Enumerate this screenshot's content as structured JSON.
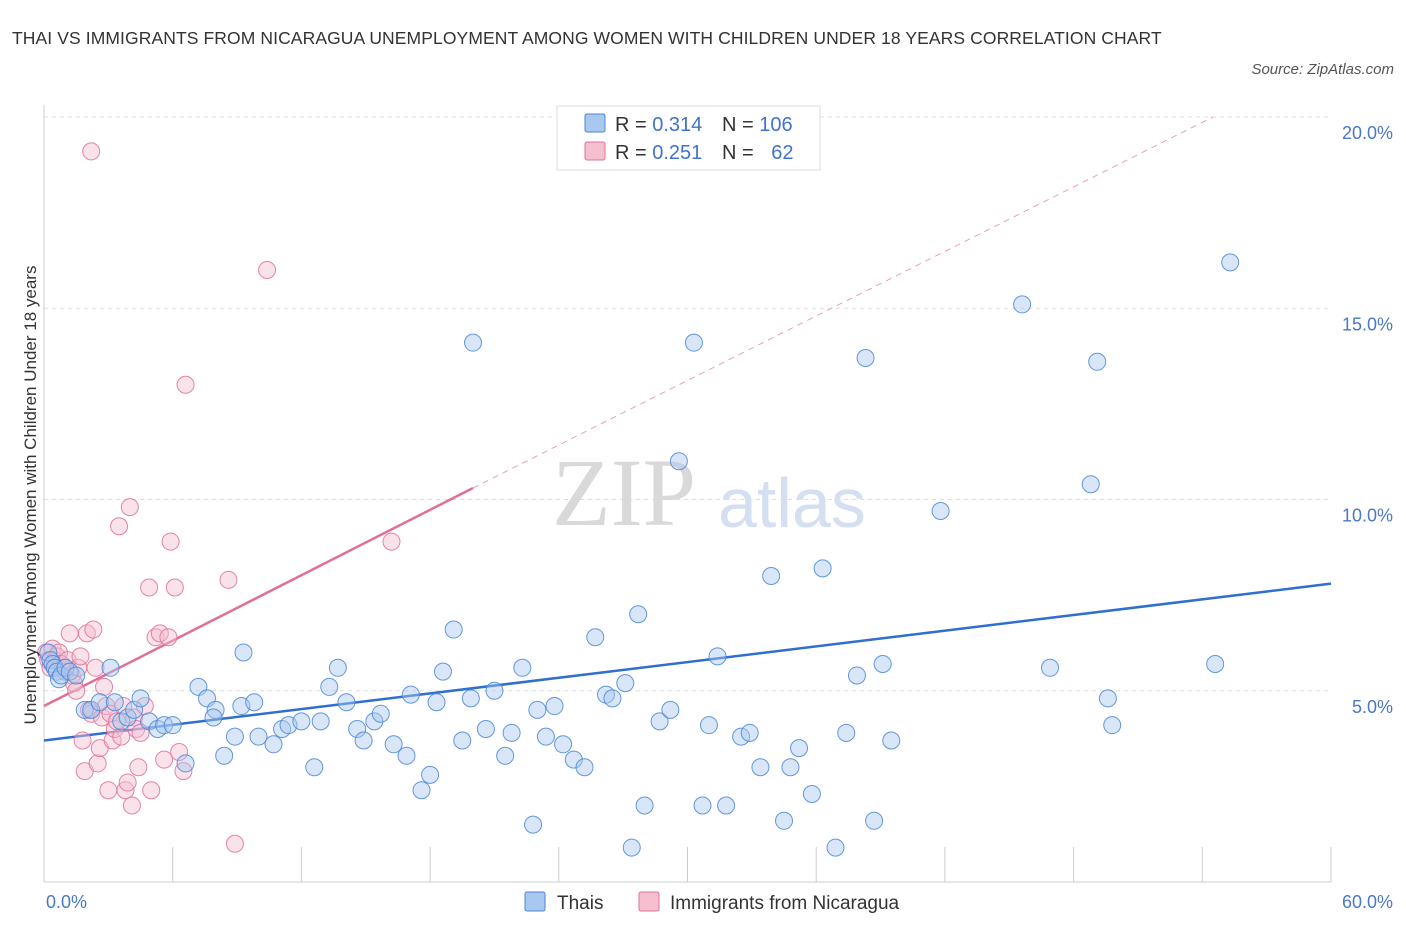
{
  "title": "THAI VS IMMIGRANTS FROM NICARAGUA UNEMPLOYMENT AMONG WOMEN WITH CHILDREN UNDER 18 YEARS CORRELATION CHART",
  "source": "Source: ZipAtlas.com",
  "watermark": {
    "zip": "ZIP",
    "atlas": "atlas"
  },
  "colors": {
    "thai": "#4a86d8",
    "thai_fill": "#a9c8f0",
    "nicaragua": "#e07097",
    "nicaragua_fill": "#f5bfd0",
    "axis_text": "#4a78c9",
    "grid": "#dddddd"
  },
  "legend": {
    "rows": [
      {
        "r_label": "R = ",
        "r_value": "0.314",
        "n_label": "N = ",
        "n_value": "106"
      },
      {
        "r_label": "R = ",
        "r_value": "0.251",
        "n_label": "N = ",
        "n_value": "62"
      }
    ]
  },
  "bottom_legend": [
    "Thais",
    "Immigrants from Nicaragua"
  ],
  "chart_data": {
    "type": "scatter",
    "title": "THAI VS IMMIGRANTS FROM NICARAGUA UNEMPLOYMENT AMONG WOMEN WITH CHILDREN UNDER 18 YEARS CORRELATION CHART",
    "xlabel": "",
    "ylabel": "Unemployment Among Women with Children Under 18 years",
    "xlim": [
      0,
      60
    ],
    "ylim": [
      0,
      20
    ],
    "x_tick_labels": [
      "0.0%",
      "60.0%"
    ],
    "y_ticks": [
      5,
      10,
      15,
      20
    ],
    "y_tick_labels": [
      "5.0%",
      "10.0%",
      "15.0%",
      "20.0%"
    ],
    "grid": true,
    "series": [
      {
        "name": "Thais",
        "R": 0.314,
        "N": 106,
        "trend": {
          "x": [
            0,
            60
          ],
          "y": [
            3.7,
            7.8
          ]
        },
        "points": [
          [
            0.2,
            6.0
          ],
          [
            0.3,
            5.8
          ],
          [
            0.4,
            5.7
          ],
          [
            0.5,
            5.6
          ],
          [
            0.6,
            5.5
          ],
          [
            0.7,
            5.3
          ],
          [
            0.8,
            5.4
          ],
          [
            1.0,
            5.6
          ],
          [
            1.2,
            5.5
          ],
          [
            1.5,
            5.4
          ],
          [
            1.9,
            4.5
          ],
          [
            2.2,
            4.5
          ],
          [
            2.6,
            4.7
          ],
          [
            3.1,
            5.6
          ],
          [
            3.3,
            4.7
          ],
          [
            3.6,
            4.2
          ],
          [
            3.9,
            4.3
          ],
          [
            4.2,
            4.5
          ],
          [
            4.5,
            4.8
          ],
          [
            4.9,
            4.2
          ],
          [
            5.3,
            4.0
          ],
          [
            5.6,
            4.1
          ],
          [
            6.0,
            4.1
          ],
          [
            6.6,
            3.1
          ],
          [
            7.2,
            5.1
          ],
          [
            7.6,
            4.8
          ],
          [
            8.0,
            4.5
          ],
          [
            7.9,
            4.3
          ],
          [
            8.4,
            3.3
          ],
          [
            8.9,
            3.8
          ],
          [
            9.2,
            4.6
          ],
          [
            9.3,
            6.0
          ],
          [
            9.8,
            4.7
          ],
          [
            10.0,
            3.8
          ],
          [
            10.7,
            3.6
          ],
          [
            11.1,
            4.0
          ],
          [
            11.4,
            4.1
          ],
          [
            12.0,
            4.2
          ],
          [
            12.6,
            3.0
          ],
          [
            12.9,
            4.2
          ],
          [
            13.3,
            5.1
          ],
          [
            13.7,
            5.6
          ],
          [
            14.1,
            4.7
          ],
          [
            14.6,
            4.0
          ],
          [
            14.9,
            3.7
          ],
          [
            15.4,
            4.2
          ],
          [
            15.7,
            4.4
          ],
          [
            16.3,
            3.6
          ],
          [
            16.9,
            3.3
          ],
          [
            17.1,
            4.9
          ],
          [
            17.6,
            2.4
          ],
          [
            18.0,
            2.8
          ],
          [
            18.3,
            4.7
          ],
          [
            18.6,
            5.5
          ],
          [
            19.1,
            6.6
          ],
          [
            19.5,
            3.7
          ],
          [
            19.9,
            4.8
          ],
          [
            20.6,
            4.0
          ],
          [
            21.0,
            5.0
          ],
          [
            21.5,
            3.3
          ],
          [
            21.8,
            3.9
          ],
          [
            22.3,
            5.6
          ],
          [
            22.8,
            1.5
          ],
          [
            23.0,
            4.5
          ],
          [
            23.4,
            3.8
          ],
          [
            23.8,
            4.6
          ],
          [
            24.2,
            3.6
          ],
          [
            24.7,
            3.2
          ],
          [
            25.2,
            3.0
          ],
          [
            25.7,
            6.4
          ],
          [
            26.2,
            4.9
          ],
          [
            26.5,
            4.8
          ],
          [
            27.1,
            5.2
          ],
          [
            27.4,
            0.9
          ],
          [
            27.7,
            7.0
          ],
          [
            28.0,
            2.0
          ],
          [
            28.7,
            4.2
          ],
          [
            29.2,
            4.5
          ],
          [
            29.6,
            11.0
          ],
          [
            30.3,
            14.1
          ],
          [
            30.7,
            2.0
          ],
          [
            31.0,
            4.1
          ],
          [
            31.4,
            5.9
          ],
          [
            31.8,
            2.0
          ],
          [
            32.5,
            3.8
          ],
          [
            32.9,
            3.9
          ],
          [
            33.4,
            3.0
          ],
          [
            33.9,
            8.0
          ],
          [
            34.5,
            1.6
          ],
          [
            34.8,
            3.0
          ],
          [
            35.2,
            3.5
          ],
          [
            35.8,
            2.3
          ],
          [
            36.3,
            8.2
          ],
          [
            36.9,
            0.9
          ],
          [
            37.4,
            3.9
          ],
          [
            37.9,
            5.4
          ],
          [
            38.3,
            13.7
          ],
          [
            38.7,
            1.6
          ],
          [
            39.1,
            5.7
          ],
          [
            39.5,
            3.7
          ],
          [
            20.0,
            14.1
          ],
          [
            41.8,
            9.7
          ],
          [
            45.6,
            15.1
          ],
          [
            46.9,
            5.6
          ],
          [
            48.8,
            10.4
          ],
          [
            49.1,
            13.6
          ],
          [
            49.6,
            4.8
          ],
          [
            49.8,
            4.1
          ],
          [
            54.6,
            5.7
          ],
          [
            55.3,
            16.2
          ]
        ]
      },
      {
        "name": "Immigrants from Nicaragua",
        "R": 0.251,
        "N": 62,
        "trend": {
          "x": [
            0,
            20
          ],
          "y": [
            4.6,
            10.3
          ]
        },
        "trend_extension": {
          "x": [
            20,
            54.5
          ],
          "y": [
            10.3,
            20.0
          ]
        },
        "points": [
          [
            0.1,
            6.0
          ],
          [
            0.2,
            5.8
          ],
          [
            0.3,
            5.6
          ],
          [
            0.4,
            6.1
          ],
          [
            0.5,
            5.8
          ],
          [
            0.6,
            5.9
          ],
          [
            0.7,
            6.0
          ],
          [
            0.8,
            5.7
          ],
          [
            0.9,
            5.6
          ],
          [
            1.0,
            5.5
          ],
          [
            1.1,
            5.8
          ],
          [
            1.2,
            6.5
          ],
          [
            1.3,
            5.4
          ],
          [
            1.4,
            5.2
          ],
          [
            1.5,
            5.0
          ],
          [
            1.6,
            5.6
          ],
          [
            1.7,
            5.9
          ],
          [
            1.8,
            3.7
          ],
          [
            1.9,
            2.9
          ],
          [
            2.0,
            6.5
          ],
          [
            2.1,
            4.5
          ],
          [
            2.2,
            4.4
          ],
          [
            2.3,
            6.6
          ],
          [
            2.4,
            5.6
          ],
          [
            2.5,
            3.1
          ],
          [
            2.6,
            3.5
          ],
          [
            2.7,
            4.3
          ],
          [
            2.8,
            5.1
          ],
          [
            2.9,
            4.6
          ],
          [
            3.0,
            2.4
          ],
          [
            3.1,
            4.4
          ],
          [
            3.2,
            3.7
          ],
          [
            3.3,
            4.0
          ],
          [
            3.4,
            4.2
          ],
          [
            3.5,
            9.3
          ],
          [
            3.6,
            3.8
          ],
          [
            3.7,
            4.6
          ],
          [
            3.8,
            2.4
          ],
          [
            3.9,
            2.6
          ],
          [
            4.0,
            9.8
          ],
          [
            4.1,
            2.0
          ],
          [
            4.2,
            4.3
          ],
          [
            4.3,
            4.0
          ],
          [
            4.4,
            3.0
          ],
          [
            4.5,
            3.9
          ],
          [
            4.7,
            4.6
          ],
          [
            4.9,
            7.7
          ],
          [
            5.0,
            2.4
          ],
          [
            5.2,
            6.4
          ],
          [
            5.4,
            6.5
          ],
          [
            5.6,
            3.2
          ],
          [
            5.8,
            6.4
          ],
          [
            5.9,
            8.9
          ],
          [
            6.1,
            7.7
          ],
          [
            6.3,
            3.4
          ],
          [
            6.5,
            2.9
          ],
          [
            6.6,
            13.0
          ],
          [
            8.6,
            7.9
          ],
          [
            8.9,
            1.0
          ],
          [
            10.4,
            16.0
          ],
          [
            2.2,
            19.1
          ],
          [
            16.2,
            8.9
          ]
        ]
      }
    ]
  }
}
